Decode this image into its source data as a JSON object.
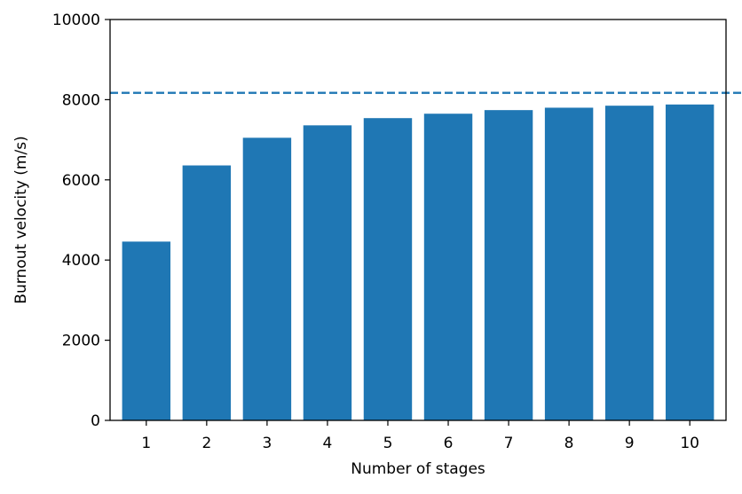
{
  "chart_data": {
    "type": "bar",
    "title": "",
    "xlabel": "Number of stages",
    "ylabel": "Burnout velocity (m/s)",
    "categories": [
      "1",
      "2",
      "3",
      "4",
      "5",
      "6",
      "7",
      "8",
      "9",
      "10"
    ],
    "values": [
      4460,
      6360,
      7050,
      7360,
      7540,
      7650,
      7740,
      7800,
      7850,
      7880
    ],
    "ylim": [
      0,
      10000
    ],
    "yticks": [
      "0",
      "2000",
      "4000",
      "6000",
      "8000",
      "10000"
    ],
    "reference_line": {
      "value": 8170,
      "style": "dashed"
    },
    "grid": false,
    "legend": "none",
    "colors": {
      "bar": "#1f77b4",
      "reference_line": "#1f77b4",
      "axes": "#000000"
    }
  }
}
